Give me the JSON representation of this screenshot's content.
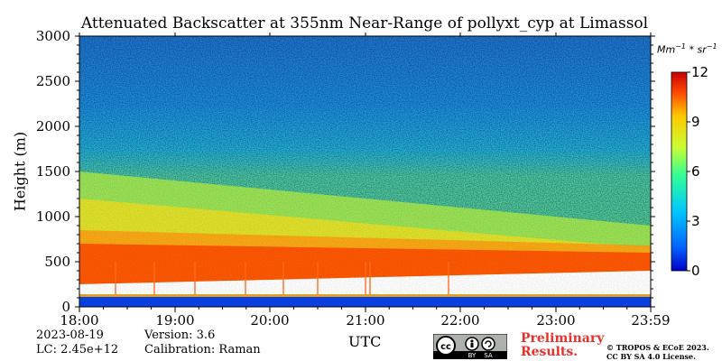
{
  "title": "Attenuated Backscatter at 355nm Near-Range of pollyxt_cyp at Limassol",
  "chart_data": {
    "type": "heatmap",
    "title": "Attenuated Backscatter at 355nm Near-Range of pollyxt_cyp at Limassol",
    "xlabel": "UTC",
    "ylabel": "Height (m)",
    "x_ticks": [
      "18:00",
      "19:00",
      "20:00",
      "21:00",
      "22:00",
      "23:00",
      "23:59"
    ],
    "y_ticks": [
      "0",
      "500",
      "1000",
      "1500",
      "2000",
      "2500",
      "3000"
    ],
    "xlim": [
      "18:00",
      "23:59"
    ],
    "ylim": [
      0,
      3000
    ],
    "colorbar": {
      "label": "Mm^-1 * sr^-1",
      "ticks": [
        "0",
        "3",
        "6",
        "9",
        "12"
      ],
      "range": [
        0,
        12
      ],
      "colormap": "jet",
      "colors": [
        "#0000c8",
        "#0064ff",
        "#00c8ff",
        "#32ff96",
        "#c8ff32",
        "#ffc800",
        "#ff4600",
        "#c80000"
      ]
    },
    "layers": [
      {
        "name": "aerosol layer top (m)",
        "start": 1500,
        "end": 900
      },
      {
        "name": "near-range gap bottom (m)",
        "start": 250,
        "end": 400
      },
      {
        "name": "strongest backscatter band top (m)",
        "start": 700,
        "end": 600
      }
    ]
  },
  "footer": {
    "date": "2023-08-19",
    "lc": "LC: 2.45e+12",
    "version": "Version: 3.6",
    "calibration": "Calibration: Raman",
    "preliminary_line1": "Preliminary",
    "preliminary_line2": "Results.",
    "copyright_line1": "© TROPOS & ECoE 2023.",
    "copyright_line2": "CC BY SA 4.0 License.",
    "cc_text": "cc",
    "cc_by": "BY",
    "cc_sa": "SA"
  }
}
